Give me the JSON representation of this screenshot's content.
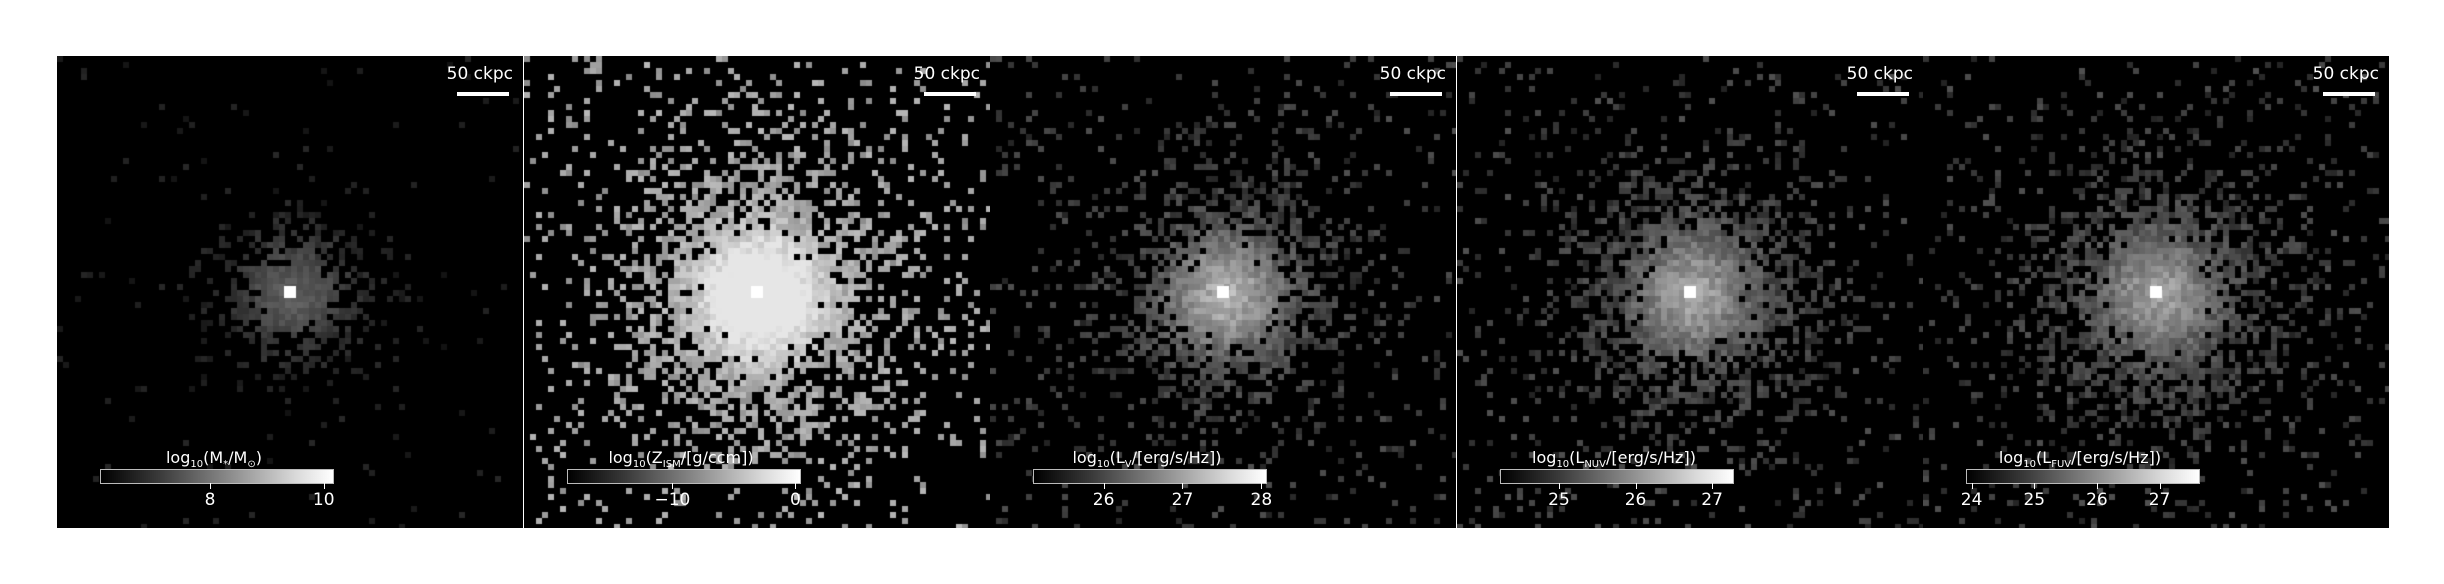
{
  "figure": {
    "panels": [
      {
        "id": "mass",
        "scalebar": "50 ckpc",
        "cbar_label": {
          "pre": "log",
          "sub1": "10",
          "mid": "(M",
          "sub2": "*",
          "mid2": "/M",
          "sub3": "⊙",
          "post": ")"
        },
        "ticks": [
          "8",
          "10"
        ],
        "tick_pos": [
          0.47,
          0.96
        ],
        "core_brightness": 1.0,
        "spread": 0.35
      },
      {
        "id": "metallicity",
        "scalebar": "50 ckpc",
        "cbar_label": {
          "pre": "log",
          "sub1": "10",
          "mid": "(Z",
          "sub2": "ISM",
          "mid2": "/[g/ccm]",
          "sub3": "",
          "post": ")"
        },
        "ticks": [
          "−10",
          "0"
        ],
        "tick_pos": [
          0.45,
          0.98
        ],
        "core_brightness": 1.0,
        "spread": 1.0
      },
      {
        "id": "lum-v",
        "scalebar": "50 ckpc",
        "cbar_label": {
          "pre": "log",
          "sub1": "10",
          "mid": "(L",
          "sub2": "V",
          "mid2": "/[erg/s/Hz]",
          "sub3": "",
          "post": ")"
        },
        "ticks": [
          "26",
          "27",
          "28"
        ],
        "tick_pos": [
          0.3,
          0.64,
          0.98
        ],
        "core_brightness": 0.95,
        "spread": 0.7
      },
      {
        "id": "lum-nuv",
        "scalebar": "50 ckpc",
        "cbar_label": {
          "pre": "log",
          "sub1": "10",
          "mid": "(L",
          "sub2": "NUV",
          "mid2": "/[erg/s/Hz]",
          "sub3": "",
          "post": ")"
        },
        "ticks": [
          "25",
          "26",
          "27"
        ],
        "tick_pos": [
          0.25,
          0.58,
          0.91
        ],
        "core_brightness": 0.85,
        "spread": 0.8
      },
      {
        "id": "lum-fuv",
        "scalebar": "50 ckpc",
        "cbar_label": {
          "pre": "log",
          "sub1": "10",
          "mid": "(L",
          "sub2": "FUV",
          "mid2": "/[erg/s/Hz]",
          "sub3": "",
          "post": ")"
        },
        "ticks": [
          "24",
          "25",
          "26",
          "27"
        ],
        "tick_pos": [
          0.02,
          0.29,
          0.56,
          0.83
        ],
        "core_brightness": 0.8,
        "spread": 0.85
      }
    ]
  }
}
